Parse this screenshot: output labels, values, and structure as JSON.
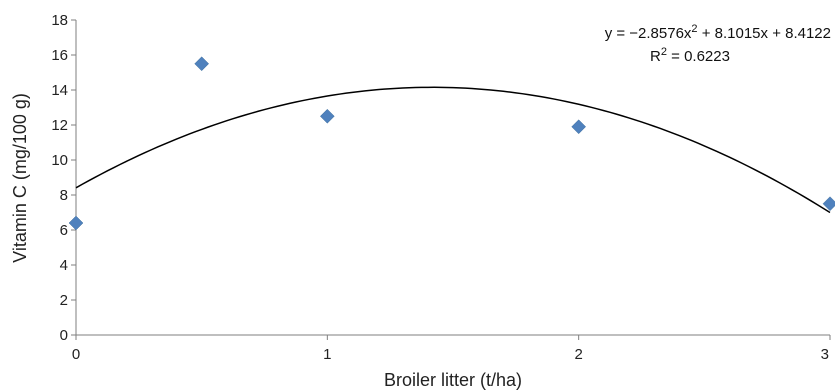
{
  "chart_data": {
    "type": "scatter",
    "xlabel": "Broiler litter (t/ha)",
    "ylabel": "Vitamin C (mg/100 g)",
    "xlim": [
      0,
      3
    ],
    "ylim": [
      0,
      18
    ],
    "x_ticks": [
      0,
      1,
      2,
      3
    ],
    "y_ticks": [
      0,
      2,
      4,
      6,
      8,
      10,
      12,
      14,
      16,
      18
    ],
    "grid": false,
    "series": [
      {
        "points": [
          {
            "x": 0,
            "y": 6.4
          },
          {
            "x": 0.5,
            "y": 15.5
          },
          {
            "x": 1,
            "y": 12.5
          },
          {
            "x": 2,
            "y": 11.9
          },
          {
            "x": 3,
            "y": 7.5
          }
        ],
        "marker": "diamond",
        "color": "#4F81BD"
      }
    ],
    "trendline": {
      "type": "polynomial",
      "coefficients": {
        "a": -2.8576,
        "b": 8.1015,
        "c": 8.4122
      },
      "color": "#000000",
      "equation_parts": {
        "prefix": "y = −2.8576x",
        "exp": "2",
        "suffix": " + 8.1015x + 8.4122"
      },
      "r2_parts": {
        "prefix": "R",
        "exp": "2",
        "suffix": " = 0.6223"
      }
    }
  }
}
